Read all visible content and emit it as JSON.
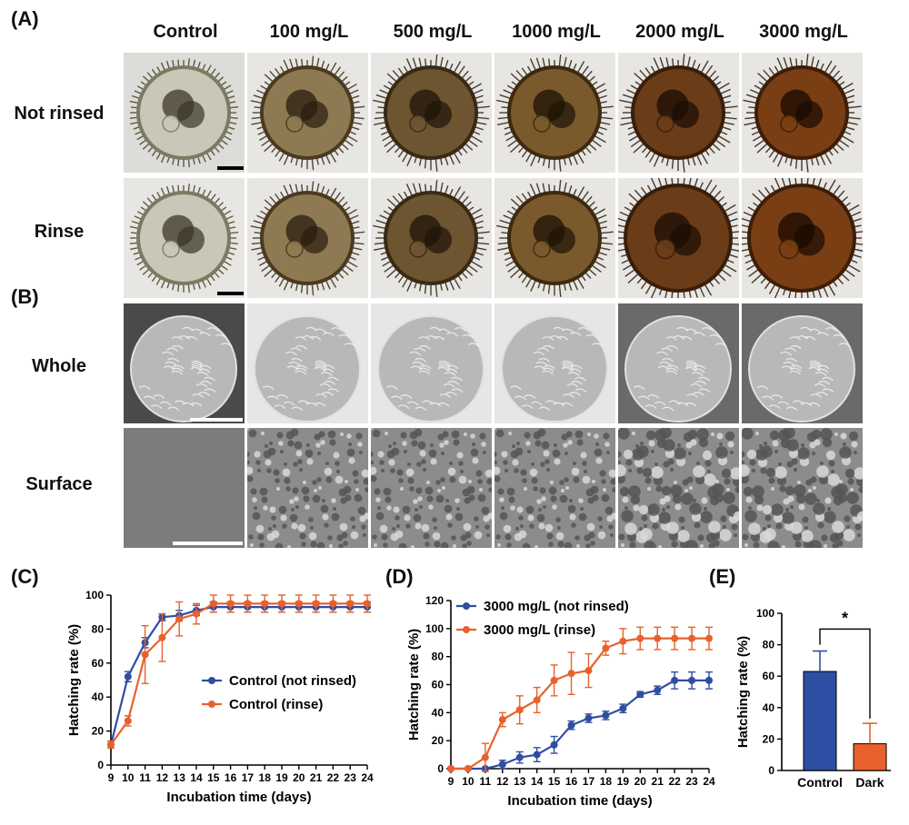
{
  "panels": {
    "a": "(A)",
    "b": "(B)",
    "c": "(C)",
    "d": "(D)",
    "e": "(E)"
  },
  "columns": [
    "Control",
    "100 mg/L",
    "500 mg/L",
    "1000 mg/L",
    "2000 mg/L",
    "3000 mg/L"
  ],
  "rows": {
    "not_rinsed": "Not rinsed",
    "rinse": "Rinse",
    "whole": "Whole",
    "surface": "Surface"
  },
  "colors": {
    "blue": "#2f4ea1",
    "orange": "#e8612c",
    "bar_blue": "#2d4fa3",
    "bar_orange": "#e8612c",
    "sem_bg": "#5a5a5a"
  },
  "chart_data": [
    {
      "id": "C",
      "type": "line",
      "xlabel": "Incubation time (days)",
      "ylabel": "Hatching rate (%)",
      "xlim": [
        9,
        24
      ],
      "ylim": [
        0,
        100
      ],
      "xticks": [
        9,
        10,
        11,
        12,
        13,
        14,
        15,
        16,
        17,
        18,
        19,
        20,
        21,
        22,
        23,
        24
      ],
      "yticks": [
        0,
        20,
        40,
        60,
        80,
        100
      ],
      "legend_position": "center-right",
      "series": [
        {
          "name": "Control (not rinsed)",
          "color": "#2f4ea1",
          "x": [
            9,
            10,
            11,
            12,
            13,
            14,
            15,
            16,
            17,
            18,
            19,
            20,
            21,
            22,
            23,
            24
          ],
          "y": [
            12,
            52,
            72,
            87,
            88,
            91,
            93,
            93,
            93,
            93,
            93,
            93,
            93,
            93,
            93,
            93
          ],
          "err": [
            2,
            3,
            3,
            2,
            3,
            3,
            3,
            3,
            3,
            3,
            3,
            3,
            3,
            3,
            3,
            3
          ]
        },
        {
          "name": "Control (rinse)",
          "color": "#e8612c",
          "x": [
            9,
            10,
            11,
            12,
            13,
            14,
            15,
            16,
            17,
            18,
            19,
            20,
            21,
            22,
            23,
            24
          ],
          "y": [
            12,
            26,
            65,
            75,
            86,
            89,
            95,
            95,
            95,
            95,
            95,
            95,
            95,
            95,
            95,
            95
          ],
          "err": [
            2,
            3,
            17,
            14,
            10,
            6,
            5,
            5,
            5,
            5,
            5,
            5,
            5,
            5,
            5,
            5
          ]
        }
      ]
    },
    {
      "id": "D",
      "type": "line",
      "xlabel": "Incubation time (days)",
      "ylabel": "Hatching rate (%)",
      "xlim": [
        9,
        24
      ],
      "ylim": [
        0,
        120
      ],
      "xticks": [
        9,
        10,
        11,
        12,
        13,
        14,
        15,
        16,
        17,
        18,
        19,
        20,
        21,
        22,
        23,
        24
      ],
      "yticks": [
        0,
        20,
        40,
        60,
        80,
        100,
        120
      ],
      "legend_position": "top-left",
      "series": [
        {
          "name": "3000 mg/L (not rinsed)",
          "color": "#2f4ea1",
          "x": [
            9,
            10,
            11,
            12,
            13,
            14,
            15,
            16,
            17,
            18,
            19,
            20,
            21,
            22,
            23,
            24
          ],
          "y": [
            0,
            0,
            0,
            3,
            8,
            10,
            17,
            31,
            36,
            38,
            43,
            53,
            56,
            63,
            63,
            63
          ],
          "err": [
            0,
            0,
            0,
            3,
            4,
            5,
            6,
            3,
            3,
            3,
            3,
            2,
            3,
            6,
            6,
            6
          ]
        },
        {
          "name": "3000 mg/L (rinse)",
          "color": "#e8612c",
          "x": [
            9,
            10,
            11,
            12,
            13,
            14,
            15,
            16,
            17,
            18,
            19,
            20,
            21,
            22,
            23,
            24
          ],
          "y": [
            0,
            0,
            8,
            35,
            42,
            49,
            63,
            68,
            70,
            86,
            91,
            93,
            93,
            93,
            93,
            93
          ],
          "err": [
            0,
            0,
            10,
            5,
            10,
            9,
            11,
            15,
            12,
            5,
            9,
            8,
            8,
            8,
            8,
            8
          ]
        }
      ]
    },
    {
      "id": "E",
      "type": "bar",
      "ylabel": "Hatching rate (%)",
      "ylim": [
        0,
        100
      ],
      "yticks": [
        0,
        20,
        40,
        60,
        80,
        100
      ],
      "categories": [
        "Control",
        "Dark"
      ],
      "values": [
        63,
        17
      ],
      "err": [
        13,
        13
      ],
      "colors": [
        "#2d4fa3",
        "#e8612c"
      ],
      "annotation": "*"
    }
  ]
}
